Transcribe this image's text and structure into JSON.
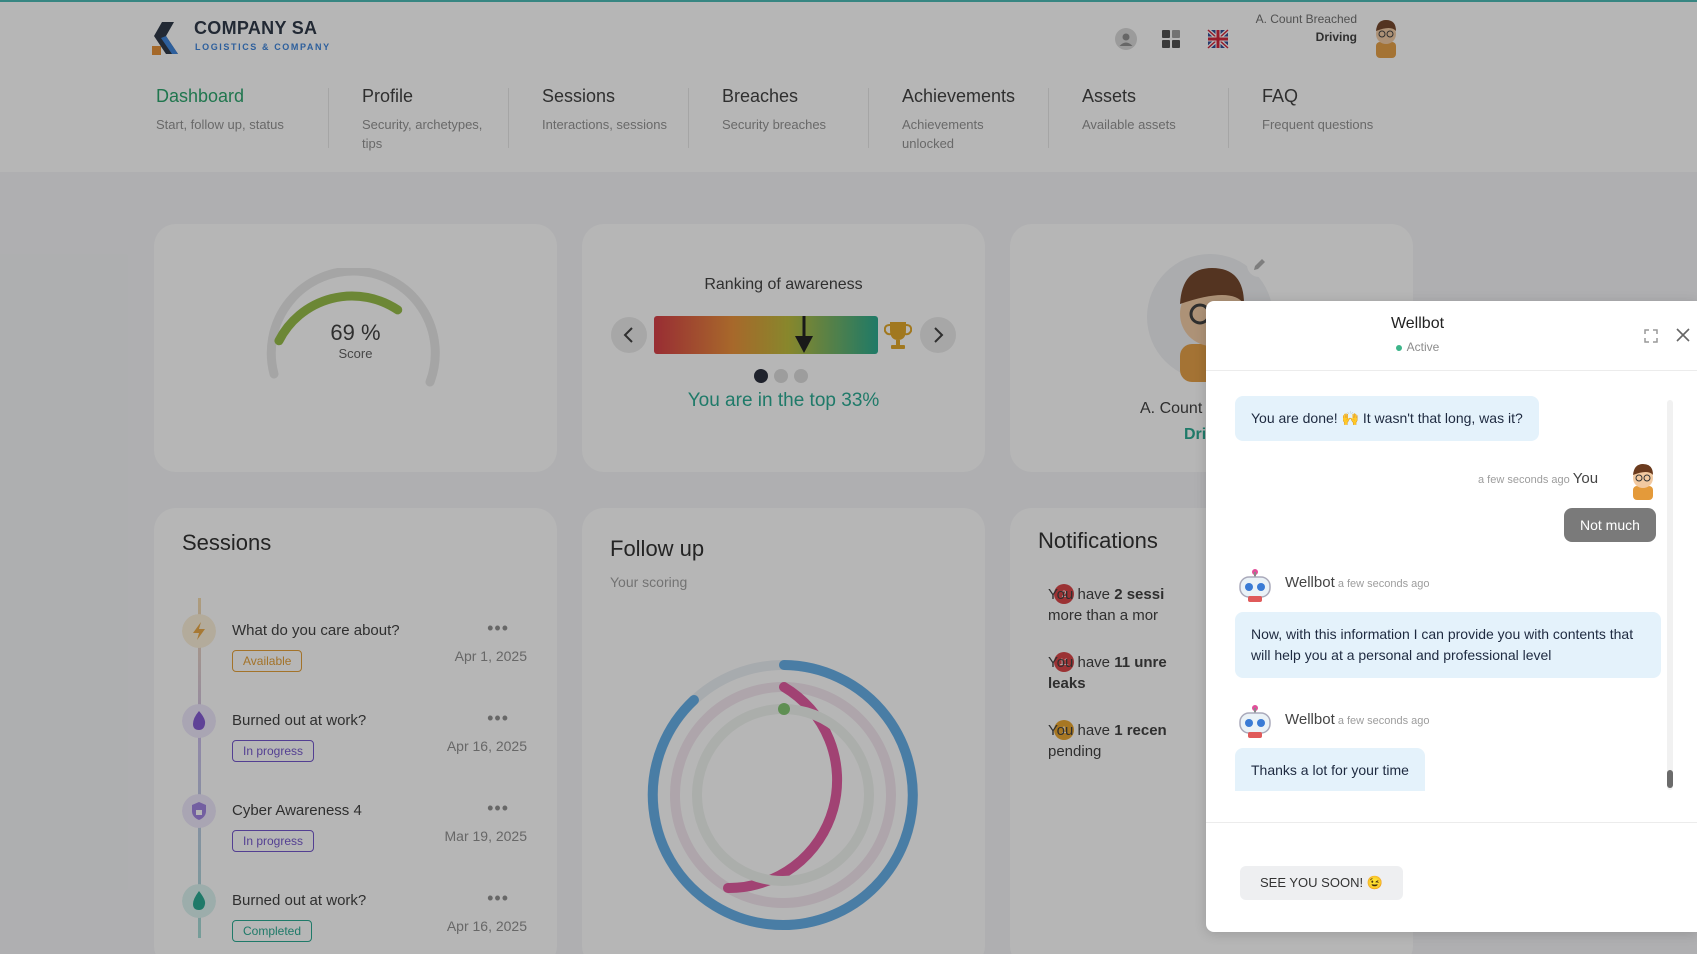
{
  "brand": {
    "name": "COMPANY SA",
    "tagline": "LOGISTICS & COMPANY"
  },
  "user": {
    "name": "A. Count Breached",
    "role": "Driving"
  },
  "header_icons": [
    "user-icon",
    "apps-grid-icon",
    "uk-flag-icon"
  ],
  "nav": [
    {
      "title": "Dashboard",
      "sub": "Start, follow up, status",
      "active": true
    },
    {
      "title": "Profile",
      "sub": "Security, archetypes, tips",
      "active": false
    },
    {
      "title": "Sessions",
      "sub": "Interactions, sessions",
      "active": false
    },
    {
      "title": "Breaches",
      "sub": "Security breaches",
      "active": false
    },
    {
      "title": "Achievements",
      "sub": "Achievements unlocked",
      "active": false
    },
    {
      "title": "Assets",
      "sub": "Available assets",
      "active": false
    },
    {
      "title": "FAQ",
      "sub": "Frequent questions",
      "active": false
    }
  ],
  "score": {
    "value": "69 %",
    "label": "Score",
    "fraction": 0.69
  },
  "ranking": {
    "title": "Ranking of awareness",
    "text": "You are in the top 33%",
    "marker_fraction": 0.67,
    "pages": 3,
    "active_page": 1
  },
  "profile": {
    "name": "A. Count",
    "role": "Dri"
  },
  "sessions": {
    "title": "Sessions",
    "items": [
      {
        "title": "What do you care about?",
        "status": "Available",
        "date": "Apr 1, 2025"
      },
      {
        "title": "Burned out at work?",
        "status": "In progress",
        "date": "Apr 16, 2025"
      },
      {
        "title": "Cyber Awareness 4",
        "status": "In progress",
        "date": "Mar 19, 2025"
      },
      {
        "title": "Burned out at work?",
        "status": "Completed",
        "date": "Apr 16, 2025"
      }
    ]
  },
  "followup": {
    "title": "Follow up",
    "sub": "Your scoring"
  },
  "notifications": {
    "title": "Notifications",
    "items": [
      {
        "count": "2",
        "pre": "You have ",
        "bold": "2 sessi",
        "rest": "more than a mor"
      },
      {
        "count": "11",
        "pre": "You have ",
        "bold": "11 unre",
        "rest": "leaks"
      },
      {
        "count": "1",
        "pre": "You have ",
        "bold": "1 recen",
        "rest": "pending"
      }
    ]
  },
  "chat": {
    "title": "Wellbot",
    "status": "Active",
    "messages": [
      {
        "type": "bot",
        "text": "You are done! 🙌 It wasn't that long, was it?"
      },
      {
        "type": "user-meta",
        "time": "a few seconds ago",
        "who": "You"
      },
      {
        "type": "user",
        "text": "Not much"
      },
      {
        "type": "bot-meta",
        "who": "Wellbot",
        "time": "a few seconds ago"
      },
      {
        "type": "bot",
        "text": "Now, with this information I can provide you with contents that will help you at a personal and professional level"
      },
      {
        "type": "bot-meta",
        "who": "Wellbot",
        "time": "a few seconds ago"
      },
      {
        "type": "bot",
        "text": "Thanks a lot for your time"
      }
    ],
    "quick_reply": "SEE YOU SOON! 😉"
  }
}
